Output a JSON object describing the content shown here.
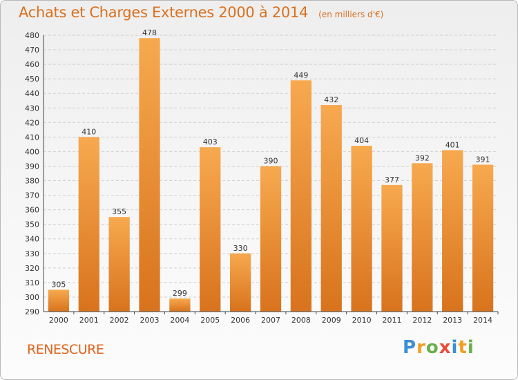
{
  "title": "Achats et Charges Externes 2000 à 2014",
  "subtitle": "(en milliers d'€)",
  "commune": "RENESCURE",
  "logo": {
    "letters": [
      {
        "char": "P",
        "color": "#3a8fd6"
      },
      {
        "char": "r",
        "color": "#f0a020"
      },
      {
        "char": "o",
        "color": "#6ab04c"
      },
      {
        "char": "x",
        "color": "#e84c3d"
      },
      {
        "char": "i",
        "color": "#3a8fd6"
      },
      {
        "char": "t",
        "color": "#f0a020"
      },
      {
        "char": "i",
        "color": "#6ab04c"
      }
    ]
  },
  "chart_data": {
    "type": "bar",
    "categories": [
      "2000",
      "2001",
      "2002",
      "2003",
      "2004",
      "2005",
      "2006",
      "2007",
      "2008",
      "2009",
      "2010",
      "2011",
      "2012",
      "2013",
      "2014"
    ],
    "values": [
      305,
      410,
      355,
      478,
      299,
      403,
      330,
      390,
      449,
      432,
      404,
      377,
      392,
      401,
      391
    ],
    "ylim": [
      290,
      480
    ],
    "yticks": [
      290,
      300,
      310,
      320,
      330,
      340,
      350,
      360,
      370,
      380,
      390,
      400,
      410,
      420,
      430,
      440,
      450,
      460,
      470,
      480
    ],
    "grid": true,
    "colors": {
      "bar_light": "#f7a94f",
      "bar_dark": "#d8731d",
      "grid": "#cfcfcf",
      "axis": "#444444",
      "label": "#333333"
    }
  }
}
